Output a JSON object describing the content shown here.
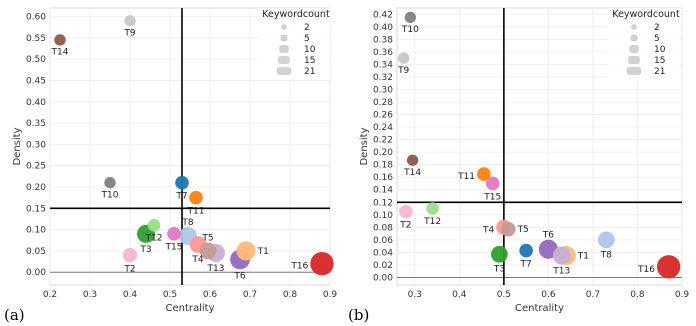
{
  "chart_data": [
    {
      "type": "scatter",
      "panel_label": "(a)",
      "xlabel": "Centrality",
      "ylabel": "Density",
      "xlim": [
        0.2,
        0.9
      ],
      "ylim": [
        -0.03,
        0.62
      ],
      "xticks": [
        "0.2",
        "0.3",
        "0.4",
        "0.5",
        "0.6",
        "0.7",
        "0.8",
        "0.9"
      ],
      "yticks": [
        "0.00",
        "0.05",
        "0.10",
        "0.15",
        "0.20",
        "0.25",
        "0.30",
        "0.35",
        "0.40",
        "0.45",
        "0.50",
        "0.55",
        "0.60"
      ],
      "xtick_values": [
        0.2,
        0.3,
        0.4,
        0.5,
        0.6,
        0.7,
        0.8,
        0.9
      ],
      "ytick_values": [
        0,
        0.05,
        0.1,
        0.15,
        0.2,
        0.25,
        0.3,
        0.35,
        0.4,
        0.45,
        0.5,
        0.55,
        0.6
      ],
      "ref_lines": {
        "x": 0.53,
        "y": 0.15
      },
      "grid": true,
      "legend": {
        "title": "Keywordcount",
        "sizes": [
          2,
          5,
          10,
          15,
          21
        ],
        "position": "top-right"
      },
      "points": [
        {
          "label": "T1",
          "x": 0.69,
          "y": 0.05,
          "size": 12,
          "color": "#ffbb78",
          "lpos": "right"
        },
        {
          "label": "T2",
          "x": 0.4,
          "y": 0.04,
          "size": 5,
          "color": "#f7b6d2",
          "lpos": "below"
        },
        {
          "label": "T3",
          "x": 0.44,
          "y": 0.09,
          "size": 10,
          "color": "#2ca02c",
          "lpos": "below"
        },
        {
          "label": "T4",
          "x": 0.57,
          "y": 0.065,
          "size": 8,
          "color": "#ff9896",
          "lpos": "below"
        },
        {
          "label": "T5",
          "x": 0.595,
          "y": 0.05,
          "size": 8,
          "color": "#c49c94",
          "lpos": "above"
        },
        {
          "label": "T6",
          "x": 0.675,
          "y": 0.03,
          "size": 13,
          "color": "#9467bd",
          "lpos": "below"
        },
        {
          "label": "T7",
          "x": 0.53,
          "y": 0.21,
          "size": 4,
          "color": "#1f77b4",
          "lpos": "below"
        },
        {
          "label": "T8",
          "x": 0.545,
          "y": 0.085,
          "size": 10,
          "color": "#aec7e8",
          "lpos": "above"
        },
        {
          "label": "T9",
          "x": 0.4,
          "y": 0.59,
          "size": 2,
          "color": "#c7c7c7",
          "lpos": "below"
        },
        {
          "label": "T10",
          "x": 0.35,
          "y": 0.21,
          "size": 2,
          "color": "#7f7f7f",
          "lpos": "below"
        },
        {
          "label": "T11",
          "x": 0.565,
          "y": 0.175,
          "size": 4,
          "color": "#ff7f0e",
          "lpos": "below"
        },
        {
          "label": "T12",
          "x": 0.46,
          "y": 0.11,
          "size": 3,
          "color": "#98df8a",
          "lpos": "below"
        },
        {
          "label": "T13",
          "x": 0.615,
          "y": 0.045,
          "size": 10,
          "color": "#c5b0d5",
          "lpos": "below"
        },
        {
          "label": "T14",
          "x": 0.225,
          "y": 0.545,
          "size": 2,
          "color": "#8c564b",
          "lpos": "below"
        },
        {
          "label": "T15",
          "x": 0.51,
          "y": 0.09,
          "size": 4,
          "color": "#e377c2",
          "lpos": "below"
        },
        {
          "label": "T16",
          "x": 0.88,
          "y": 0.02,
          "size": 21,
          "color": "#d62728",
          "lpos": "left"
        }
      ]
    },
    {
      "type": "scatter",
      "panel_label": "(b)",
      "xlabel": "Centrality",
      "ylabel": "Density",
      "xlim": [
        0.26,
        0.9
      ],
      "ylim": [
        -0.012,
        0.43
      ],
      "xticks": [
        "0.3",
        "0.4",
        "0.5",
        "0.6",
        "0.7",
        "0.8",
        "0.9"
      ],
      "yticks": [
        "0.00",
        "0.02",
        "0.04",
        "0.06",
        "0.08",
        "0.10",
        "0.12",
        "0.14",
        "0.16",
        "0.18",
        "0.20",
        "0.22",
        "0.24",
        "0.26",
        "0.28",
        "0.30",
        "0.32",
        "0.34",
        "0.36",
        "0.38",
        "0.40",
        "0.42"
      ],
      "xtick_values": [
        0.3,
        0.4,
        0.5,
        0.6,
        0.7,
        0.8,
        0.9
      ],
      "ytick_values": [
        0,
        0.02,
        0.04,
        0.06,
        0.08,
        0.1,
        0.12,
        0.14,
        0.16,
        0.18,
        0.2,
        0.22,
        0.24,
        0.26,
        0.28,
        0.3,
        0.32,
        0.34,
        0.36,
        0.38,
        0.4,
        0.42
      ],
      "ref_lines": {
        "x": 0.5,
        "y": 0.12
      },
      "grid": true,
      "legend": {
        "title": "Keywordcount",
        "sizes": [
          2,
          5,
          10,
          15,
          21
        ],
        "position": "top-right"
      },
      "points": [
        {
          "label": "T1",
          "x": 0.64,
          "y": 0.035,
          "size": 12,
          "color": "#ffbb78",
          "lpos": "right"
        },
        {
          "label": "T2",
          "x": 0.28,
          "y": 0.105,
          "size": 4,
          "color": "#f7b6d2",
          "lpos": "below"
        },
        {
          "label": "T3",
          "x": 0.49,
          "y": 0.037,
          "size": 8,
          "color": "#2ca02c",
          "lpos": "below"
        },
        {
          "label": "T4",
          "x": 0.5,
          "y": 0.08,
          "size": 6,
          "color": "#ff9896",
          "lpos": "left"
        },
        {
          "label": "T5",
          "x": 0.51,
          "y": 0.077,
          "size": 5,
          "color": "#c49c94",
          "lpos": "right"
        },
        {
          "label": "T6",
          "x": 0.6,
          "y": 0.045,
          "size": 12,
          "color": "#9467bd",
          "lpos": "above"
        },
        {
          "label": "T7",
          "x": 0.55,
          "y": 0.043,
          "size": 4,
          "color": "#1f77b4",
          "lpos": "below"
        },
        {
          "label": "T8",
          "x": 0.73,
          "y": 0.06,
          "size": 8,
          "color": "#aec7e8",
          "lpos": "below"
        },
        {
          "label": "T9",
          "x": 0.275,
          "y": 0.35,
          "size": 2,
          "color": "#c7c7c7",
          "lpos": "below"
        },
        {
          "label": "T10",
          "x": 0.29,
          "y": 0.415,
          "size": 2,
          "color": "#7f7f7f",
          "lpos": "below"
        },
        {
          "label": "T11",
          "x": 0.455,
          "y": 0.165,
          "size": 4,
          "color": "#ff7f0e",
          "lpos": "left"
        },
        {
          "label": "T12",
          "x": 0.34,
          "y": 0.11,
          "size": 3,
          "color": "#98df8a",
          "lpos": "below"
        },
        {
          "label": "T13",
          "x": 0.63,
          "y": 0.035,
          "size": 10,
          "color": "#c5b0d5",
          "lpos": "below"
        },
        {
          "label": "T14",
          "x": 0.295,
          "y": 0.187,
          "size": 2,
          "color": "#8c564b",
          "lpos": "below"
        },
        {
          "label": "T15",
          "x": 0.475,
          "y": 0.15,
          "size": 4,
          "color": "#e377c2",
          "lpos": "below"
        },
        {
          "label": "T16",
          "x": 0.87,
          "y": 0.017,
          "size": 21,
          "color": "#d62728",
          "lpos": "left"
        }
      ]
    }
  ]
}
